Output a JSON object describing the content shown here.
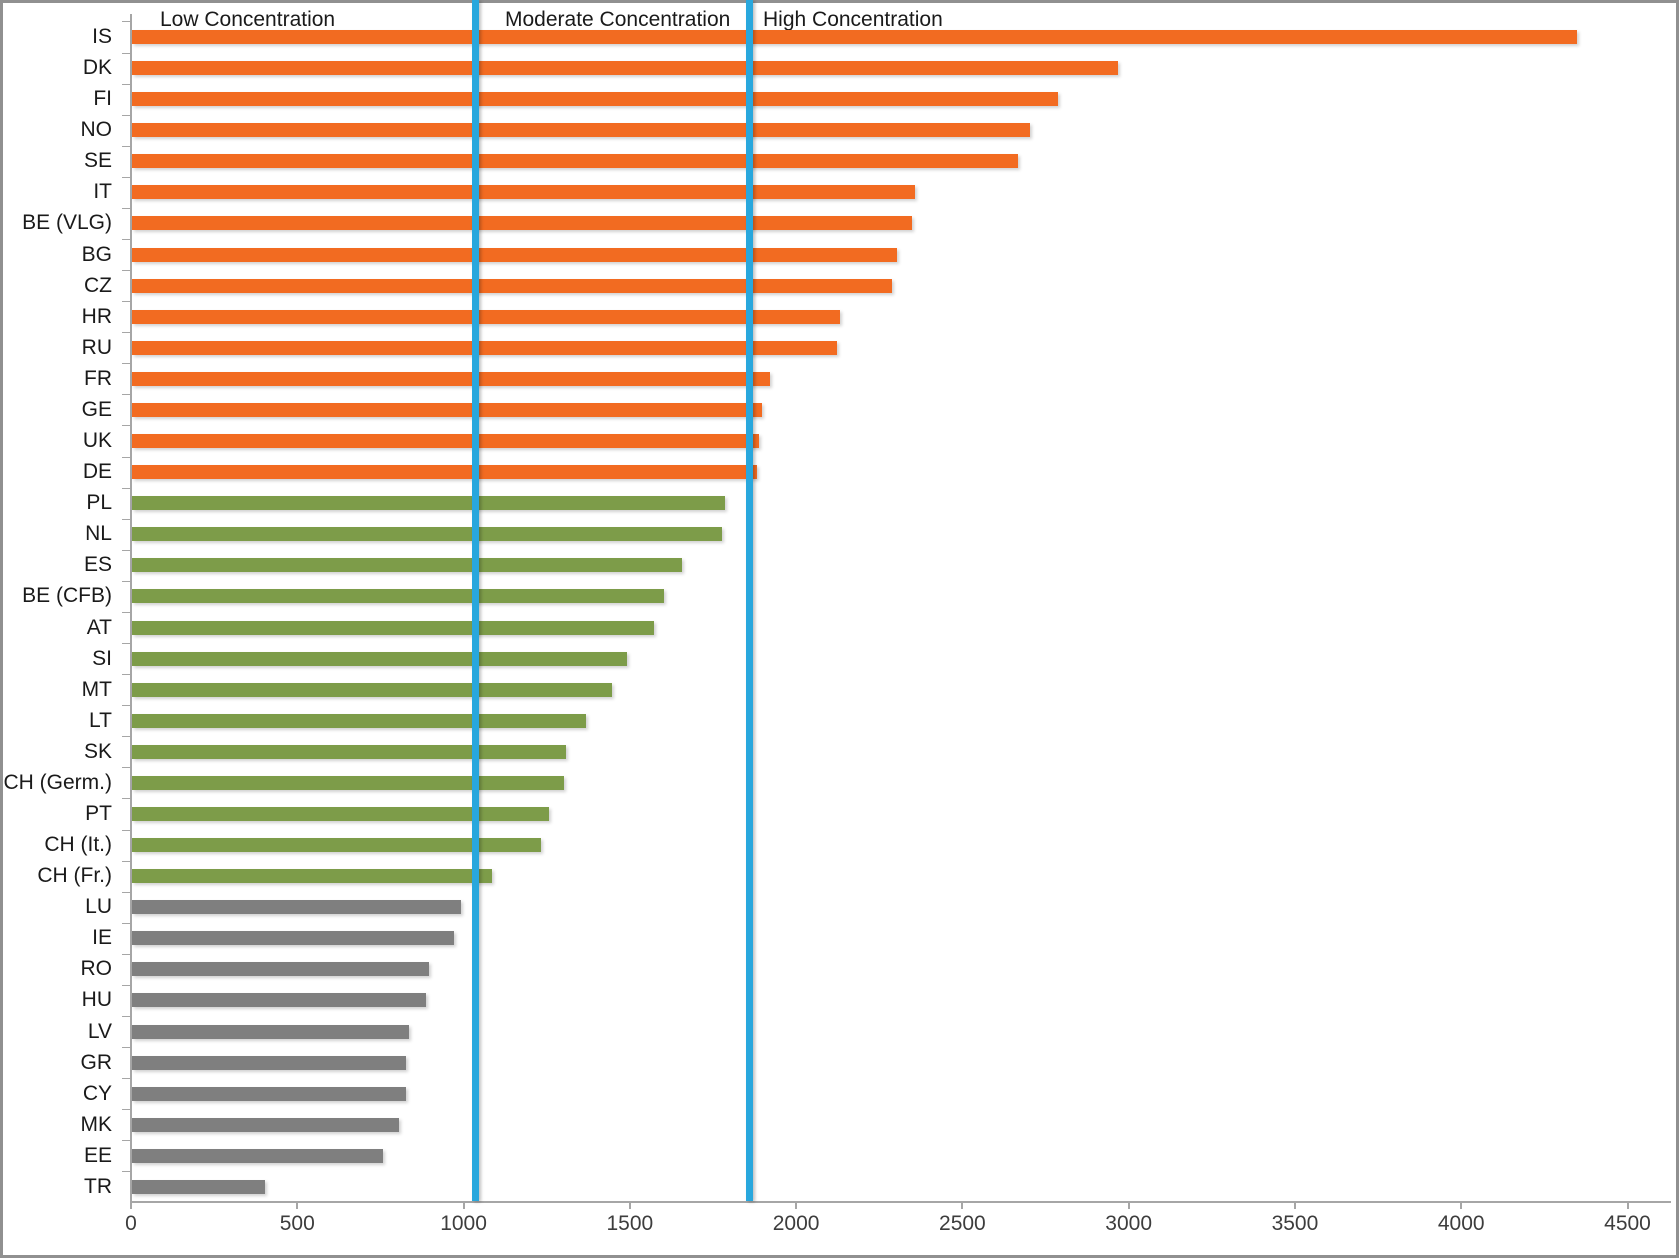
{
  "chart_data": {
    "type": "bar",
    "orientation": "horizontal",
    "title": "",
    "xlabel": "",
    "ylabel": "",
    "xlim": [
      0,
      4500
    ],
    "xticks": [
      0,
      500,
      1000,
      1500,
      2000,
      2500,
      3000,
      3500,
      4000,
      4500
    ],
    "grid": false,
    "legend": false,
    "zone_labels": [
      "Low Concentration",
      "Moderate Concentration",
      "High Concentration"
    ],
    "dividers": [
      {
        "name": "low-moderate-threshold-line",
        "x": 1035
      },
      {
        "name": "moderate-high-threshold-line",
        "x": 1860
      }
    ],
    "colors": {
      "high": "#F26B21",
      "moderate": "#7D9C49",
      "low": "#7F7F7F",
      "divider": "#28A7DD",
      "axis": "#A6A6A6",
      "text": "#1A1A1A"
    },
    "bars": [
      {
        "label": "IS",
        "value": 4350,
        "group": "high"
      },
      {
        "label": "DK",
        "value": 2970,
        "group": "high"
      },
      {
        "label": "FI",
        "value": 2790,
        "group": "high"
      },
      {
        "label": "NO",
        "value": 2705,
        "group": "high"
      },
      {
        "label": "SE",
        "value": 2670,
        "group": "high"
      },
      {
        "label": "IT",
        "value": 2360,
        "group": "high"
      },
      {
        "label": "BE (VLG)",
        "value": 2350,
        "group": "high"
      },
      {
        "label": "BG",
        "value": 2305,
        "group": "high"
      },
      {
        "label": "CZ",
        "value": 2290,
        "group": "high"
      },
      {
        "label": "HR",
        "value": 2135,
        "group": "high"
      },
      {
        "label": "RU",
        "value": 2125,
        "group": "high"
      },
      {
        "label": "FR",
        "value": 1925,
        "group": "high"
      },
      {
        "label": "GE",
        "value": 1900,
        "group": "high"
      },
      {
        "label": "UK",
        "value": 1890,
        "group": "high"
      },
      {
        "label": "DE",
        "value": 1885,
        "group": "high"
      },
      {
        "label": "PL",
        "value": 1790,
        "group": "moderate"
      },
      {
        "label": "NL",
        "value": 1780,
        "group": "moderate"
      },
      {
        "label": "ES",
        "value": 1660,
        "group": "moderate"
      },
      {
        "label": "BE (CFB)",
        "value": 1605,
        "group": "moderate"
      },
      {
        "label": "AT",
        "value": 1575,
        "group": "moderate"
      },
      {
        "label": "SI",
        "value": 1495,
        "group": "moderate"
      },
      {
        "label": "MT",
        "value": 1450,
        "group": "moderate"
      },
      {
        "label": "LT",
        "value": 1370,
        "group": "moderate"
      },
      {
        "label": "SK",
        "value": 1310,
        "group": "moderate"
      },
      {
        "label": "CH (Germ.)",
        "value": 1305,
        "group": "moderate"
      },
      {
        "label": "PT",
        "value": 1260,
        "group": "moderate"
      },
      {
        "label": "CH (It.)",
        "value": 1235,
        "group": "moderate"
      },
      {
        "label": "CH (Fr.)",
        "value": 1090,
        "group": "moderate"
      },
      {
        "label": "LU",
        "value": 995,
        "group": "low"
      },
      {
        "label": "IE",
        "value": 975,
        "group": "low"
      },
      {
        "label": "RO",
        "value": 900,
        "group": "low"
      },
      {
        "label": "HU",
        "value": 890,
        "group": "low"
      },
      {
        "label": "LV",
        "value": 840,
        "group": "low"
      },
      {
        "label": "GR",
        "value": 830,
        "group": "low"
      },
      {
        "label": "CY",
        "value": 830,
        "group": "low"
      },
      {
        "label": "MK",
        "value": 810,
        "group": "low"
      },
      {
        "label": "EE",
        "value": 760,
        "group": "low"
      },
      {
        "label": "TR",
        "value": 405,
        "group": "low"
      }
    ]
  }
}
